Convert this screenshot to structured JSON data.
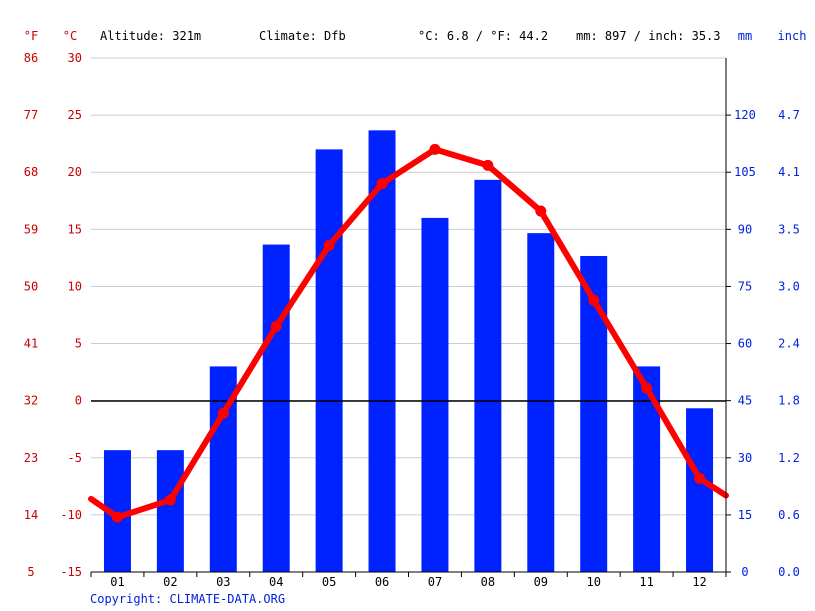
{
  "header": {
    "unit_f": "°F",
    "unit_c": "°C",
    "altitude": "Altitude: 321m",
    "climate": "Climate: Dfb",
    "temp_avg": "°C: 6.8 / °F: 44.2",
    "precip_total": "mm: 897 / inch: 35.3",
    "unit_mm": "mm",
    "unit_inch": "inch"
  },
  "footer": {
    "copyright": "Copyright: CLIMATE-DATA.ORG"
  },
  "colors": {
    "temperature": "#ff0000",
    "temperature_axis": "#cc0000",
    "precipitation": "#0022ff",
    "precip_axis": "#0022dd",
    "grid": "#cccccc",
    "zero_line": "#000000",
    "text": "#000000"
  },
  "chart_data": {
    "type": "bar+line",
    "categories": [
      "01",
      "02",
      "03",
      "04",
      "05",
      "06",
      "07",
      "08",
      "09",
      "10",
      "11",
      "12"
    ],
    "series": [
      {
        "name": "Precipitation",
        "unit": "mm",
        "type": "bar",
        "axis": "right",
        "values": [
          32,
          32,
          54,
          86,
          111,
          116,
          93,
          103,
          89,
          83,
          54,
          43
        ]
      },
      {
        "name": "Temperature",
        "unit": "°C",
        "type": "line",
        "axis": "left",
        "values": [
          -10.2,
          -8.7,
          -1.1,
          6.5,
          13.6,
          19.0,
          22.0,
          20.6,
          16.6,
          8.8,
          1.1,
          -6.8
        ]
      }
    ],
    "line_edges": {
      "start": -8.6,
      "end": -8.3
    },
    "y_left_celsius": {
      "ticks": [
        "30",
        "25",
        "20",
        "15",
        "10",
        "5",
        "0",
        "-5",
        "-10",
        "-15"
      ],
      "ylim": [
        -15,
        30
      ]
    },
    "y_left_fahrenheit": {
      "ticks": [
        "86",
        "77",
        "68",
        "59",
        "50",
        "41",
        "32",
        "23",
        "14",
        "5"
      ]
    },
    "y_right_mm": {
      "ticks": [
        "120",
        "105",
        "90",
        "75",
        "60",
        "45",
        "30",
        "15",
        "0"
      ],
      "ylim": [
        0,
        135
      ]
    },
    "y_right_inch": {
      "ticks": [
        "4.7",
        "4.1",
        "3.5",
        "3.0",
        "2.4",
        "1.8",
        "1.2",
        "0.6",
        "0.0"
      ]
    }
  }
}
